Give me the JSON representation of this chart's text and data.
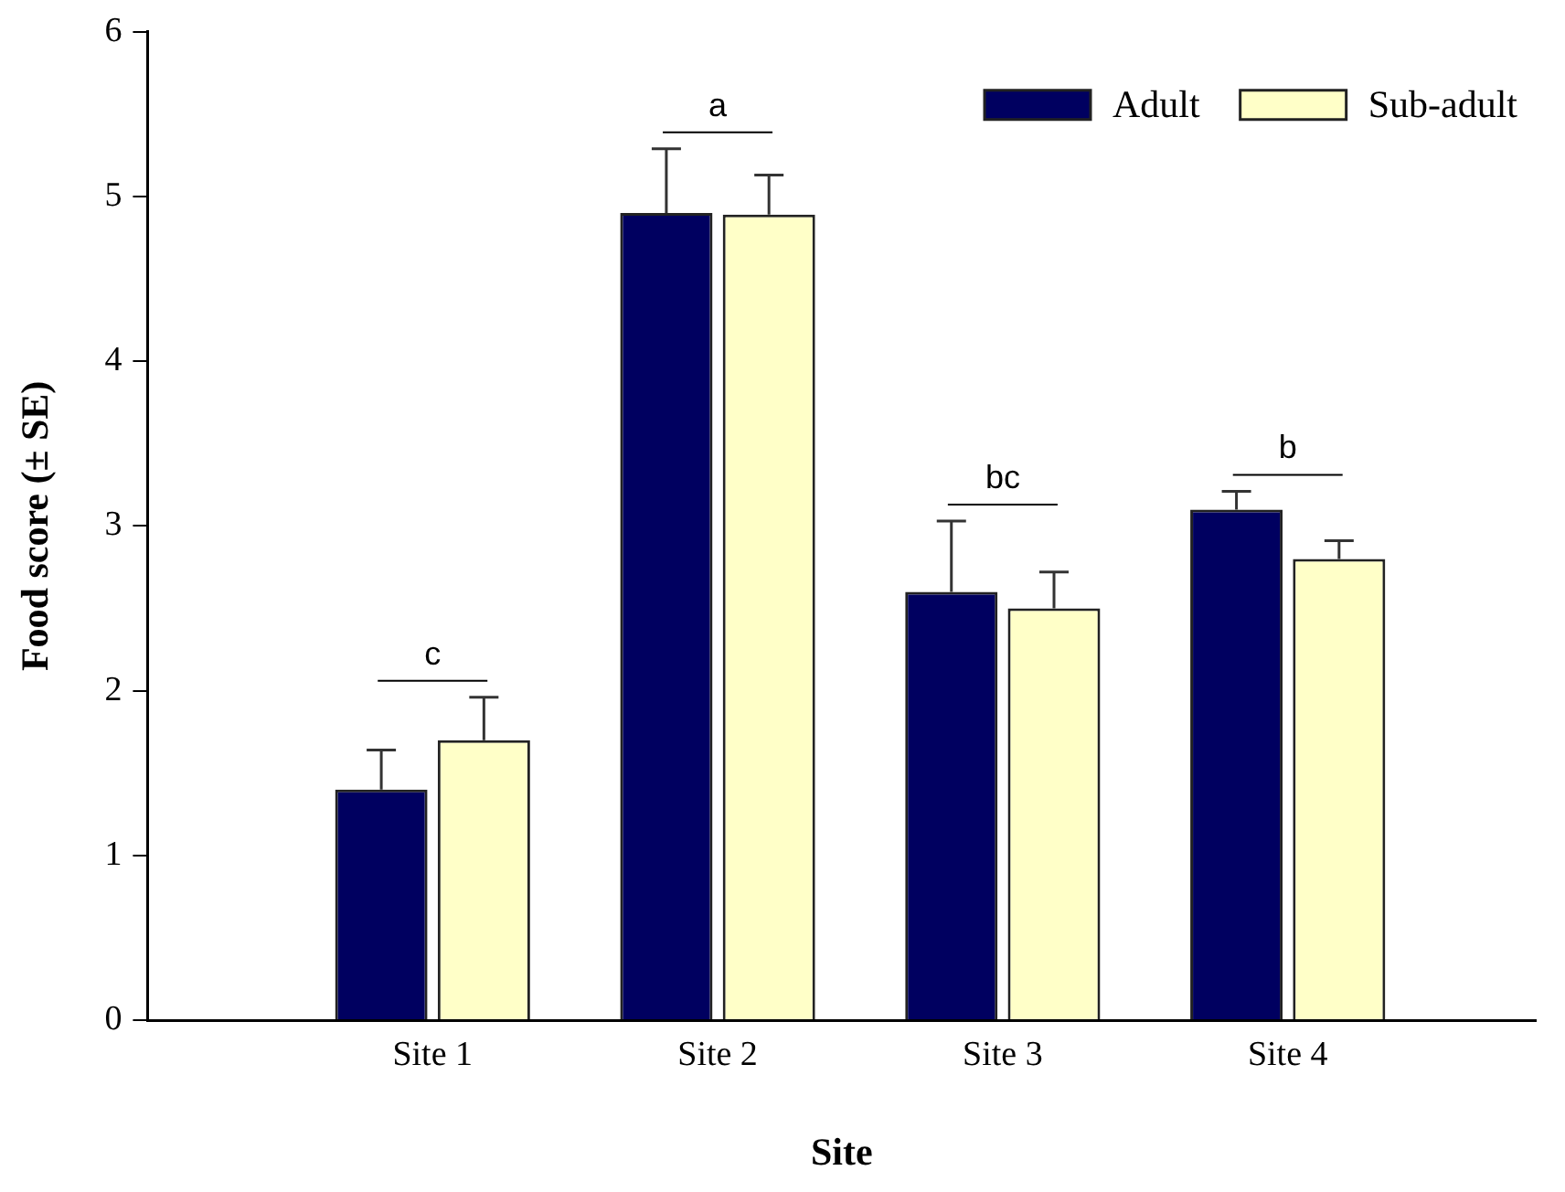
{
  "chart_data": {
    "type": "bar",
    "xlabel": "Site",
    "ylabel": "Food score (± SE)",
    "categories": [
      "Site 1",
      "Site 2",
      "Site 3",
      "Site 4"
    ],
    "series": [
      {
        "name": "Adult",
        "color": "#000060",
        "values": [
          1.4,
          4.9,
          2.6,
          3.1
        ],
        "errors": [
          [
            1.4,
            1.64
          ],
          [
            4.9,
            5.29
          ],
          [
            2.6,
            3.03
          ],
          [
            3.1,
            3.21
          ]
        ]
      },
      {
        "name": "Sub-adult",
        "color": "#ffffc8",
        "values": [
          1.7,
          4.89,
          2.5,
          2.8
        ],
        "errors": [
          [
            1.7,
            1.96
          ],
          [
            4.89,
            5.13
          ],
          [
            2.5,
            2.72
          ],
          [
            2.8,
            2.91
          ]
        ]
      }
    ],
    "ylim": [
      0,
      6
    ],
    "yticks": [
      0,
      1,
      2,
      3,
      4,
      5,
      6
    ],
    "grid": false,
    "legend": "top right",
    "annotations": [
      "c",
      "a",
      "bc",
      "b"
    ]
  }
}
